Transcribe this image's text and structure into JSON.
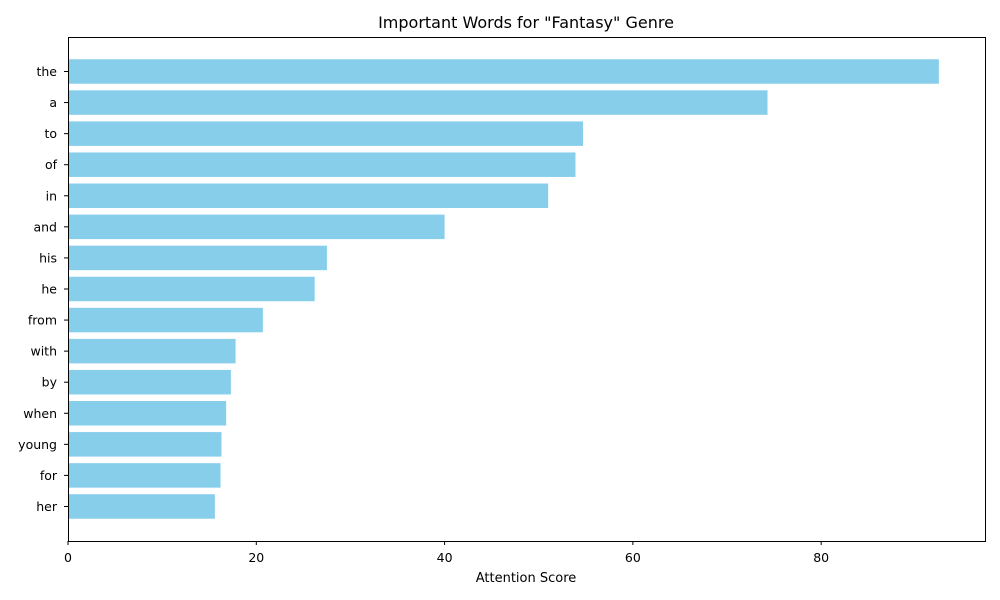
{
  "chart_data": {
    "type": "bar",
    "orientation": "horizontal",
    "title": "Important Words for \"Fantasy\" Genre",
    "xlabel": "Attention Score",
    "ylabel": "",
    "categories": [
      "the",
      "a",
      "to",
      "of",
      "in",
      "and",
      "his",
      "he",
      "from",
      "with",
      "by",
      "when",
      "young",
      "for",
      "her"
    ],
    "values": [
      92.5,
      74.3,
      54.7,
      53.9,
      51.0,
      40.0,
      27.5,
      26.2,
      20.7,
      17.8,
      17.3,
      16.8,
      16.3,
      16.2,
      15.6
    ],
    "xlim": [
      0,
      97.4
    ],
    "xticks": [
      0,
      20,
      40,
      60,
      80
    ],
    "xtick_labels": [
      "0",
      "20",
      "40",
      "60",
      "80"
    ],
    "grid": false,
    "bar_color": "#87CEEB"
  }
}
